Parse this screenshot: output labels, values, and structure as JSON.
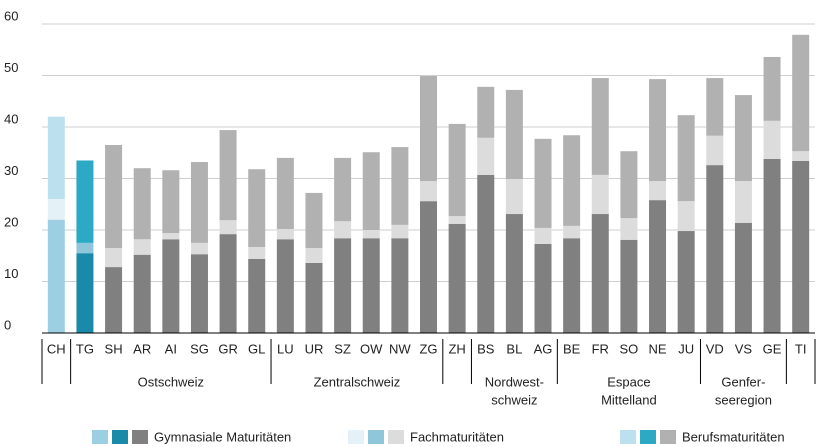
{
  "chart_data": {
    "type": "stacked_bar",
    "categories": [
      "CH",
      "TG",
      "SH",
      "AR",
      "AI",
      "SG",
      "GR",
      "GL",
      "LU",
      "UR",
      "SZ",
      "OW",
      "NW",
      "ZG",
      "ZH",
      "BS",
      "BL",
      "AG",
      "BE",
      "FR",
      "SO",
      "NE",
      "JU",
      "VD",
      "VS",
      "GE",
      "TI"
    ],
    "series": [
      {
        "name": "Gymnasiale Maturitäten",
        "colors": [
          "#9dcfe2",
          "#1a8aab",
          "#808080",
          "#808080",
          "#808080",
          "#808080",
          "#808080",
          "#808080",
          "#808080",
          "#808080",
          "#808080",
          "#808080",
          "#808080",
          "#808080",
          "#808080",
          "#808080",
          "#808080",
          "#808080",
          "#808080",
          "#808080",
          "#808080",
          "#808080",
          "#808080",
          "#808080",
          "#808080",
          "#808080",
          "#808080"
        ],
        "values": [
          22,
          15.5,
          12.8,
          15.2,
          18.2,
          15.3,
          19.2,
          14.4,
          18.2,
          13.6,
          18.4,
          18.4,
          18.4,
          25.6,
          21.2,
          30.7,
          23.1,
          17.3,
          18.4,
          23.1,
          18.1,
          25.8,
          19.8,
          32.6,
          21.4,
          33.8,
          33.4
        ]
      },
      {
        "name": "Fachmaturitäten",
        "colors": [
          "#e4f2f8",
          "#8fc6da",
          "#dcdcdc",
          "#dcdcdc",
          "#dcdcdc",
          "#dcdcdc",
          "#dcdcdc",
          "#dcdcdc",
          "#dcdcdc",
          "#dcdcdc",
          "#dcdcdc",
          "#dcdcdc",
          "#dcdcdc",
          "#dcdcdc",
          "#dcdcdc",
          "#dcdcdc",
          "#dcdcdc",
          "#dcdcdc",
          "#dcdcdc",
          "#dcdcdc",
          "#dcdcdc",
          "#dcdcdc",
          "#dcdcdc",
          "#dcdcdc",
          "#dcdcdc",
          "#dcdcdc",
          "#dcdcdc"
        ],
        "values": [
          4,
          2,
          3.7,
          3,
          1.2,
          2.2,
          2.7,
          2.3,
          2,
          2.9,
          3.3,
          1.6,
          2.6,
          3.9,
          1.5,
          7.2,
          6.8,
          3.1,
          2.4,
          7.6,
          4.2,
          3.7,
          5.8,
          5.7,
          8.1,
          7.4,
          1.9
        ]
      },
      {
        "name": "Berufsmaturitäten",
        "colors": [
          "#bde0ee",
          "#2ba9c5",
          "#b1b1b1",
          "#b1b1b1",
          "#b1b1b1",
          "#b1b1b1",
          "#b1b1b1",
          "#b1b1b1",
          "#b1b1b1",
          "#b1b1b1",
          "#b1b1b1",
          "#b1b1b1",
          "#b1b1b1",
          "#b1b1b1",
          "#b1b1b1",
          "#b1b1b1",
          "#b1b1b1",
          "#b1b1b1",
          "#b1b1b1",
          "#b1b1b1",
          "#b1b1b1",
          "#b1b1b1",
          "#b1b1b1",
          "#b1b1b1",
          "#b1b1b1",
          "#b1b1b1",
          "#b1b1b1"
        ],
        "values": [
          16,
          16,
          20,
          13.8,
          12.2,
          15.7,
          17.5,
          15.1,
          13.8,
          10.7,
          12.3,
          15.1,
          15.1,
          20.4,
          17.9,
          9.9,
          17.3,
          17.3,
          17.6,
          18.8,
          13,
          19.8,
          16.7,
          11.2,
          16.7,
          12.4,
          22.6
        ]
      }
    ],
    "groups": [
      {
        "label": null,
        "size": 1
      },
      {
        "label": [
          "Ostschweiz"
        ],
        "size": 7
      },
      {
        "label": [
          "Zentralschweiz"
        ],
        "size": 6
      },
      {
        "label": null,
        "size": 1
      },
      {
        "label": [
          "Nordwest-",
          "schweiz"
        ],
        "size": 3
      },
      {
        "label": [
          "Espace",
          "Mittelland"
        ],
        "size": 5
      },
      {
        "label": [
          "Genfer-",
          "seeregion"
        ],
        "size": 3
      },
      {
        "label": null,
        "size": 1
      }
    ],
    "ylim": [
      0,
      60
    ],
    "yticks": [
      0,
      10,
      20,
      30,
      40,
      50,
      60
    ],
    "grid": true
  }
}
